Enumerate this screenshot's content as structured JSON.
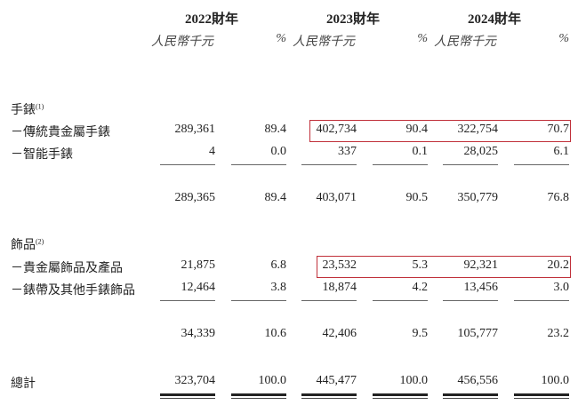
{
  "header": {
    "years": [
      "2022財年",
      "2023財年",
      "2024財年"
    ],
    "units": [
      "人民幣千元",
      "%",
      "人民幣千元",
      "%",
      "人民幣千元",
      "%"
    ]
  },
  "sections": [
    {
      "title": "手錶",
      "note": "(1)",
      "rows": [
        {
          "label": "－傳統貴金屬手錶",
          "values": [
            "289,361",
            "89.4",
            "402,734",
            "90.4",
            "322,754",
            "70.7"
          ],
          "highlighted": true
        },
        {
          "label": "－智能手錶",
          "values": [
            "4",
            "0.0",
            "337",
            "0.1",
            "28,025",
            "6.1"
          ],
          "highlighted": false
        }
      ],
      "subtotal": [
        "289,365",
        "89.4",
        "403,071",
        "90.5",
        "350,779",
        "76.8"
      ]
    },
    {
      "title": "飾品",
      "note": "(2)",
      "rows": [
        {
          "label": "－貴金屬飾品及產品",
          "values": [
            "21,875",
            "6.8",
            "23,532",
            "5.3",
            "92,321",
            "20.2"
          ],
          "highlighted": true
        },
        {
          "label": "－錶帶及其他手錶飾品",
          "values": [
            "12,464",
            "3.8",
            "18,874",
            "4.2",
            "13,456",
            "3.0"
          ],
          "highlighted": false
        }
      ],
      "subtotal": [
        "34,339",
        "10.6",
        "42,406",
        "9.5",
        "105,777",
        "23.2"
      ]
    }
  ],
  "total": {
    "label": "總計",
    "values": [
      "323,704",
      "100.0",
      "445,477",
      "100.0",
      "456,556",
      "100.0"
    ]
  },
  "colors": {
    "highlight_border": "#c0303a"
  }
}
